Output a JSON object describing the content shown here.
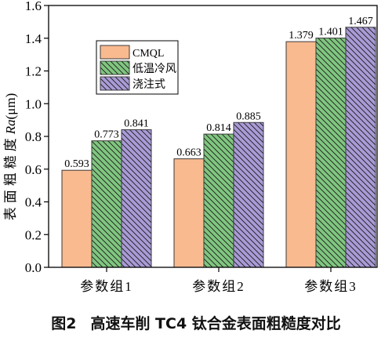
{
  "chart_data": {
    "type": "bar",
    "categories": [
      "参数组1",
      "参数组2",
      "参数组3"
    ],
    "series": [
      {
        "name": "CMQL",
        "values": [
          0.593,
          0.663,
          1.379
        ],
        "color": "#F9BA90"
      },
      {
        "name": "低温冷风",
        "values": [
          0.773,
          0.814,
          1.401
        ],
        "color": "#80C680"
      },
      {
        "name": "浇注式",
        "values": [
          0.841,
          0.885,
          1.467
        ],
        "color": "#A99BD6"
      }
    ],
    "ylabel": {
      "text": "表面粗糙度",
      "symbol": "Ra",
      "unit": "(μm)"
    },
    "ylim": [
      0,
      1.6
    ],
    "ytick_labels": [
      "0.0",
      "0.2",
      "0.4",
      "0.6",
      "0.8",
      "1.0",
      "1.2",
      "1.4",
      "1.6"
    ],
    "grid": false,
    "legend_position": "top-left"
  },
  "caption": {
    "figure_number": "图2",
    "title": "高速车削 TC4 钛合金表面粗糙度对比"
  }
}
